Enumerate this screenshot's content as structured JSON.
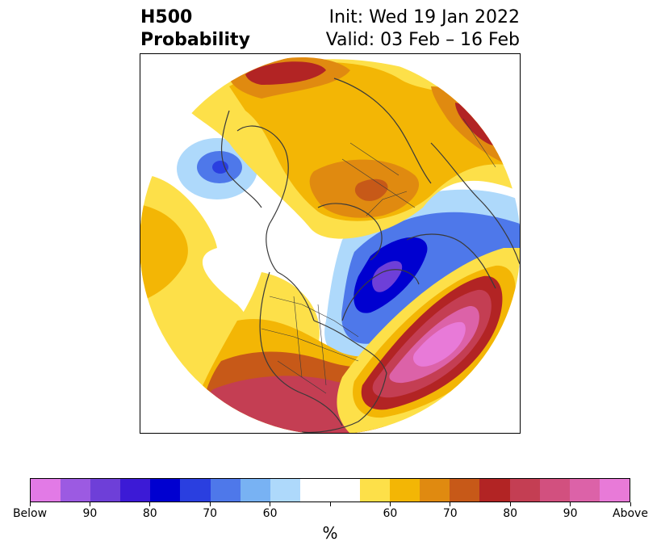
{
  "title": {
    "left_line1": "H500",
    "left_line2": "Probability",
    "right_line1": "Init: Wed 19 Jan 2022",
    "right_line2": "Valid: 03 Feb – 16 Feb"
  },
  "colorbar": {
    "colors": [
      "#e27ae6",
      "#9c5ae2",
      "#6e3fd8",
      "#3c1ad6",
      "#0000d0",
      "#2a3fe0",
      "#4e78ea",
      "#78b2f3",
      "#aed9fb",
      "#ffffff",
      "#ffffff",
      "#fde049",
      "#f3b605",
      "#e08a10",
      "#c75918",
      "#b22424",
      "#c43e53",
      "#d2507f",
      "#dc62a8",
      "#e87ad8"
    ],
    "labels": [
      "Below",
      "90",
      "80",
      "70",
      "60",
      "",
      "60",
      "70",
      "80",
      "90",
      "Above"
    ],
    "unit": "%"
  }
}
